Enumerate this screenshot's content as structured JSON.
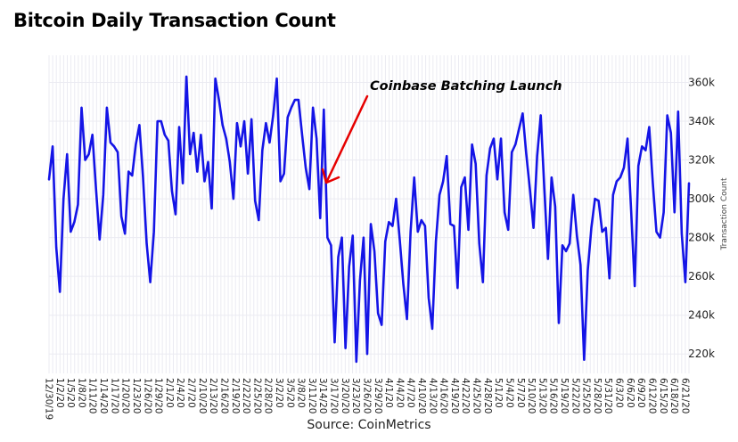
{
  "title": "Bitcoin Daily Transaction Count",
  "source": "Source: CoinMetrics",
  "colors": {
    "line": "#1414e6",
    "arrow": "#e60000",
    "grid": "#ebebf2"
  },
  "chart_data": {
    "type": "line",
    "title": "Bitcoin Daily Transaction Count",
    "ylabel": "Transaction Count",
    "xlabel": "",
    "ylim": [
      210000,
      374000
    ],
    "yticks": [
      220000,
      240000,
      260000,
      280000,
      300000,
      320000,
      340000,
      360000
    ],
    "ytick_labels": [
      "220k",
      "240k",
      "260k",
      "280k",
      "300k",
      "320k",
      "340k",
      "360k"
    ],
    "y_axis_side": "right",
    "grid": true,
    "x_start_date": "2019-12-30",
    "x_end_date": "2020-06-22",
    "xtick_labels": [
      "12/30/19",
      "1/2/20",
      "1/5/20",
      "1/8/20",
      "1/11/20",
      "1/14/20",
      "1/17/20",
      "1/20/20",
      "1/23/20",
      "1/26/20",
      "1/29/20",
      "2/1/20",
      "2/4/20",
      "2/7/20",
      "2/10/20",
      "2/13/20",
      "2/16/20",
      "2/19/20",
      "2/22/20",
      "2/25/20",
      "2/28/20",
      "3/2/20",
      "3/5/20",
      "3/8/20",
      "3/11/20",
      "3/14/20",
      "3/17/20",
      "3/20/20",
      "3/23/20",
      "3/26/20",
      "3/29/20",
      "4/1/20",
      "4/4/20",
      "4/7/20",
      "4/10/20",
      "4/13/20",
      "4/16/20",
      "4/19/20",
      "4/22/20",
      "4/25/20",
      "4/28/20",
      "5/1/20",
      "5/4/20",
      "5/7/20",
      "5/10/20",
      "5/13/20",
      "5/16/20",
      "5/19/20",
      "5/22/20",
      "5/25/20",
      "5/28/20",
      "5/31/20",
      "6/3/20",
      "6/6/20",
      "6/9/20",
      "6/12/20",
      "6/15/20",
      "6/18/20",
      "6/21/20"
    ],
    "annotation": {
      "text": "Coinbase Batching Launch",
      "x": "2020-03-14",
      "y": 313000
    },
    "series": [
      {
        "values": [
          310000,
          327000,
          275000,
          252000,
          300000,
          323000,
          283000,
          288000,
          297000,
          347000,
          320000,
          323000,
          333000,
          305000,
          279000,
          302000,
          347000,
          329000,
          327000,
          324000,
          291000,
          282000,
          314000,
          312000,
          328000,
          338000,
          311000,
          277000,
          257000,
          283000,
          340000,
          340000,
          333000,
          330000,
          304000,
          292000,
          337000,
          308000,
          363000,
          323000,
          334000,
          314000,
          333000,
          309000,
          319000,
          295000,
          362000,
          351000,
          338000,
          331000,
          319000,
          300000,
          339000,
          327000,
          340000,
          313000,
          341000,
          299000,
          289000,
          325000,
          339000,
          329000,
          343000,
          362000,
          309000,
          313000,
          342000,
          347000,
          351000,
          351000,
          333000,
          316000,
          305000,
          347000,
          331000,
          290000,
          346000,
          280000,
          276000,
          226000,
          270000,
          280000,
          223000,
          265000,
          281000,
          216000,
          258000,
          280000,
          220000,
          287000,
          273000,
          241000,
          235000,
          278000,
          288000,
          286000,
          300000,
          279000,
          256000,
          238000,
          283000,
          311000,
          283000,
          289000,
          286000,
          249000,
          233000,
          278000,
          302000,
          309000,
          322000,
          287000,
          286000,
          254000,
          306000,
          311000,
          284000,
          328000,
          318000,
          277000,
          257000,
          312000,
          326000,
          331000,
          310000,
          331000,
          293000,
          284000,
          324000,
          328000,
          336000,
          344000,
          323000,
          305000,
          285000,
          322000,
          343000,
          305000,
          269000,
          311000,
          296000,
          236000,
          276000,
          273000,
          277000,
          302000,
          281000,
          266000,
          217000,
          263000,
          285000,
          300000,
          299000,
          283000,
          285000,
          259000,
          302000,
          309000,
          311000,
          316000,
          331000,
          294000,
          255000,
          317000,
          327000,
          325000,
          337000,
          308000,
          283000,
          280000,
          293000,
          343000,
          334000,
          293000,
          345000,
          282000,
          257000,
          308000
        ]
      }
    ]
  }
}
